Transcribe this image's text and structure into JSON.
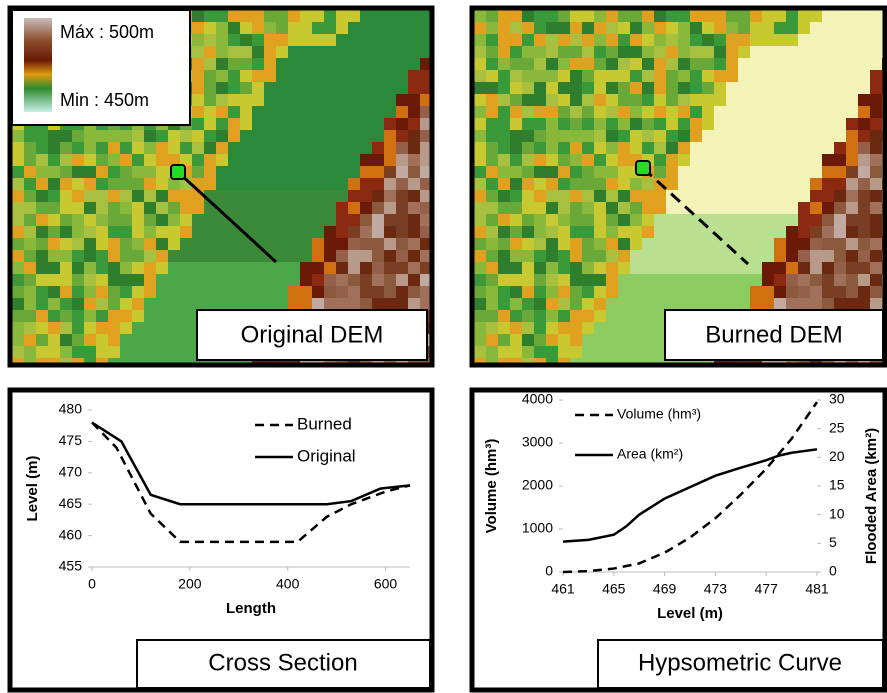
{
  "maps": [
    {
      "legend_max": "Máx : 500m",
      "legend_min": "Min : 450m",
      "label": "Original DEM"
    },
    {
      "label": "Burned DEM"
    }
  ],
  "chart_data": [
    {
      "type": "line",
      "title": "Cross Section",
      "x_label": "Length",
      "y_label": "Level (m)",
      "xlim": [
        0,
        650
      ],
      "xticks": [
        0,
        200,
        400,
        600
      ],
      "ylim": [
        455,
        480
      ],
      "yticks": [
        455,
        460,
        465,
        470,
        475,
        480
      ],
      "legend": "upper right",
      "series": [
        {
          "name": "Burned",
          "color": "#000000",
          "linestyle": "dashed",
          "x": [
            0,
            50,
            120,
            180,
            420,
            480,
            530,
            600,
            650
          ],
          "values": [
            478,
            474,
            463.5,
            459,
            459,
            463,
            465,
            467,
            468
          ]
        },
        {
          "name": "Original",
          "color": "#000000",
          "linestyle": "solid",
          "x": [
            0,
            60,
            120,
            180,
            480,
            530,
            590,
            650
          ],
          "values": [
            478,
            475,
            466.5,
            465,
            465,
            465.5,
            467.5,
            468
          ]
        }
      ]
    },
    {
      "type": "line",
      "title": "Hypsometric Curve",
      "x_label": "Level (m)",
      "y_label": "Volume (hm³)",
      "y2_label": "Flooded Area (km²)",
      "xlim": [
        461,
        481
      ],
      "xticks": [
        461,
        465,
        469,
        473,
        477,
        481
      ],
      "ylim": [
        0,
        4000
      ],
      "yticks": [
        0,
        1000,
        2000,
        3000,
        4000
      ],
      "y2lim": [
        0,
        30
      ],
      "y2ticks": [
        0,
        5,
        10,
        15,
        20,
        25,
        30
      ],
      "legend": "upper left",
      "series": [
        {
          "name": "Volume (hm³)",
          "color": "#000000",
          "linestyle": "dashed",
          "x": [
            461,
            463,
            465,
            467,
            469,
            471,
            473,
            475,
            477,
            479,
            481
          ],
          "values": [
            0,
            20,
            80,
            200,
            450,
            800,
            1250,
            1800,
            2400,
            3100,
            3950
          ]
        },
        {
          "name": "Area (km²)",
          "color": "#000000",
          "linestyle": "solid",
          "axis": "y2",
          "x": [
            461,
            463,
            465,
            466,
            467,
            469,
            471,
            473,
            475,
            477,
            478,
            479,
            481
          ],
          "values": [
            5.3,
            5.6,
            6.5,
            8,
            10,
            12.8,
            14.8,
            16.8,
            18.2,
            19.5,
            20.3,
            20.8,
            21.4
          ]
        }
      ]
    }
  ]
}
